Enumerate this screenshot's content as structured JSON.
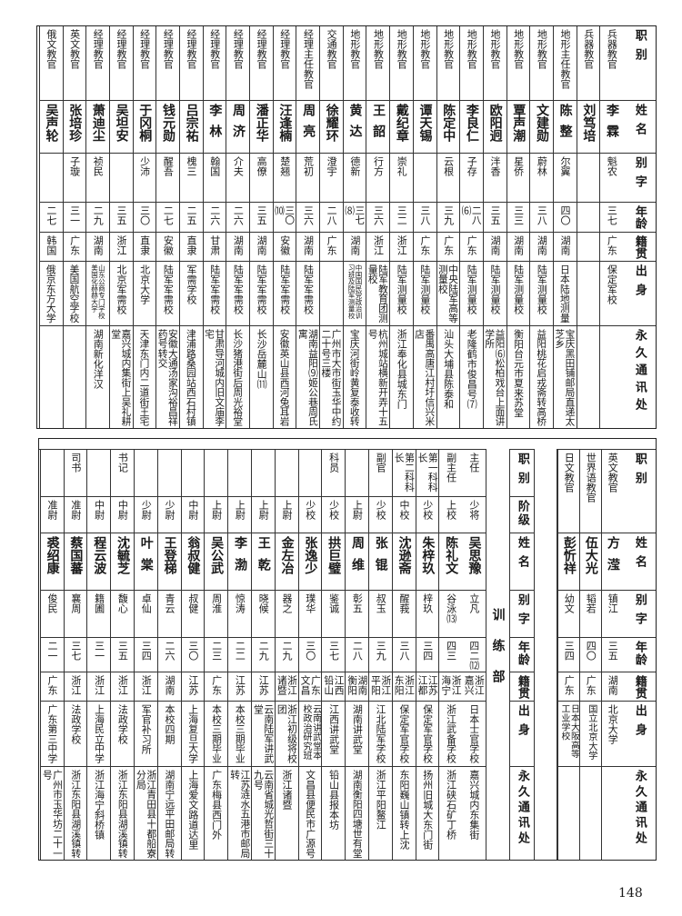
{
  "upper": {
    "headers": [
      "职别",
      "姓名",
      "别字",
      "年龄",
      "籍贯",
      "出身",
      "永久通讯处"
    ],
    "columns": [
      {
        "role": "兵器教官",
        "name": "李霖",
        "alias": "魁农",
        "age": "三七",
        "native": "广东",
        "education": "保定军校",
        "address": ""
      },
      {
        "role": "兵器教官",
        "name": "刘笃培",
        "alias": "",
        "age": "",
        "native": "",
        "education": "",
        "address": ""
      },
      {
        "role": "地形主任教官",
        "name": "陈整",
        "alias": "尔翼",
        "age": "四〇",
        "native": "湖南",
        "education": "日本陆地测量",
        "address": "宝庆黑田铺邮局直递太芝乡"
      },
      {
        "role": "地形教官",
        "name": "文建勋",
        "alias": "蔚林",
        "age": "三八",
        "native": "湖南",
        "education": "陆军测量校",
        "address": "益阳桃花启戎斋转高桥"
      },
      {
        "role": "地形教官",
        "name": "覃声潮",
        "alias": "星侨",
        "age": "三三",
        "native": "湖南",
        "education": "陆军测量校",
        "address": "衡阳台元市夏来苏堂"
      },
      {
        "role": "地形教官",
        "name": "欧阳迥",
        "alias": "泮香",
        "age": "三五",
        "native": "湖南",
        "education": "陆军测量校",
        "address": "益阳⑹松柏戏台上面讲学所"
      },
      {
        "role": "地形教官",
        "name": "李良仁",
        "alias": "子存",
        "age": "二八⑹",
        "native": "广东",
        "education": "陆军测量校",
        "address": "老隆鹤市俊昌号⑺"
      },
      {
        "role": "地形教官",
        "name": "陈定中",
        "alias": "云根",
        "age": "三九",
        "native": "广东",
        "education": "中央陆军高等测量校",
        "address": "汕头大埔县陈泰和"
      },
      {
        "role": "地形教官",
        "name": "谭天锡",
        "alias": "",
        "age": "三八",
        "native": "广东",
        "education": "陆军测量校",
        "address": "番禺高唐江村圩信兴米店"
      },
      {
        "role": "地形教官",
        "name": "戴纪章",
        "alias": "崇礼",
        "age": "三二",
        "native": "浙江",
        "education": "陆军测量校",
        "address": "浙江奉化县城东门"
      },
      {
        "role": "地形教官",
        "name": "王韶",
        "alias": "行方",
        "age": "三六",
        "native": "浙江",
        "education": "陆军教育团测量校",
        "address": "杭州城站横新开弄十五号"
      },
      {
        "role": "地形教官",
        "name": "黄达",
        "alias": "德新",
        "age": "三七⑻",
        "native": "湖南",
        "education": "中国国民党政治训习班及陆军测量校",
        "address": "宝庆河街岭黄复泰收转"
      },
      {
        "role": "交通教官",
        "name": "徐耀环",
        "alias": "澄宇",
        "age": "二八",
        "native": "广东",
        "education": "",
        "address": "广州市大市街玉华中约二十号三楼"
      },
      {
        "role": "经理主任教官",
        "name": "周亮",
        "alias": "荒初",
        "age": "三六",
        "native": "湖南",
        "education": "陆军军需校",
        "address": "湖南益阳⑼姬公巷周氏寓"
      },
      {
        "role": "经理教官",
        "name": "汪逢楠",
        "alias": "楚翘",
        "age": "三〇⑽",
        "native": "安徽",
        "education": "陆军军需校",
        "address": "安徽英山县西河兔耳岩"
      },
      {
        "role": "经理教官",
        "name": "潘正华",
        "alias": "高僚",
        "age": "三五",
        "native": "湖南",
        "education": "陆军军需校",
        "address": "长沙岳麓山⑾"
      },
      {
        "role": "经理教官",
        "name": "周济",
        "alias": "介夫",
        "age": "二六",
        "native": "湖南",
        "education": "陆军军需校",
        "address": "长沙猪港街后周光裕堂"
      },
      {
        "role": "经理教官",
        "name": "李林",
        "alias": "翰国",
        "age": "二六",
        "native": "甘肃",
        "education": "陆军军需校",
        "address": "甘肃导河城内旧文庙李宅"
      },
      {
        "role": "经理教官",
        "name": "吕宗祐",
        "alias": "槐三",
        "age": "二五",
        "native": "直隶",
        "education": "军需学校",
        "address": "津浦路桑园站西石村镇"
      },
      {
        "role": "经理教官",
        "name": "钱元勋",
        "alias": "醒吾",
        "age": "二七",
        "native": "安徽",
        "education": "陆军军需校",
        "address": "安徽大通汤家沟裕昌祥药号转交"
      },
      {
        "role": "经理教官",
        "name": "于冈桐",
        "alias": "少沛",
        "age": "三〇",
        "native": "直隶",
        "education": "北京大学",
        "address": "天津东门内二道街王宅"
      },
      {
        "role": "经理教官",
        "name": "吴坦安",
        "alias": "",
        "age": "三五",
        "native": "浙江",
        "education": "北京军需校",
        "address": "嘉兴城内集街上吴礼耕堂"
      },
      {
        "role": "经理教官",
        "name": "萧迪尘",
        "alias": "祯民",
        "age": "二九",
        "native": "湖南",
        "education": "山东公商专门学校美国化赫赫大学",
        "address": "湖南新化洋汉"
      },
      {
        "role": "英文教官",
        "name": "张培珍",
        "alias": "子璇",
        "age": "三一",
        "native": "广东",
        "education": "美国航空学校",
        "address": ""
      },
      {
        "role": "俄文教官",
        "name": "吴声轮",
        "alias": "",
        "age": "二七",
        "native": "韩国",
        "education": "俄京东方大学",
        "address": ""
      }
    ]
  },
  "lower_right": {
    "headers": [
      "职别",
      "姓名",
      "别字",
      "年龄",
      "籍贯",
      "出身",
      "永久通讯处"
    ],
    "columns": [
      {
        "role": "英文教官",
        "name": "方滢",
        "alias": "镇江",
        "age": "三五",
        "native": "湖南",
        "education": "北京大学",
        "address": ""
      },
      {
        "role": "世界语教官",
        "name": "伍大光",
        "alias": "韬若",
        "age": "四〇",
        "native": "广东",
        "education": "国立北京大学",
        "address": ""
      },
      {
        "role": "日文教官",
        "name": "彭忻祥",
        "alias": "幼文",
        "age": "三四",
        "native": "广东",
        "education": "日本大阪高等工业学校",
        "address": ""
      }
    ]
  },
  "department": "训练部",
  "lower_left": {
    "headers": [
      "职别",
      "阶级",
      "姓名",
      "别字",
      "年龄",
      "籍贯",
      "出身",
      "永久通讯处"
    ],
    "columns": [
      {
        "role": "主任",
        "rank": "少将",
        "name": "吴思豫",
        "alias": "立凡",
        "age": "四二⑿",
        "native": "浙江嘉兴",
        "education": "日本士官学校",
        "address": "嘉兴城内东集街"
      },
      {
        "role": "副主任",
        "rank": "上校",
        "name": "陈礼文",
        "alias": "谷泳⒀",
        "age": "四三",
        "native": "浙江海宁",
        "education": "浙江武备学校",
        "address": "浙江硖石矿丁桥"
      },
      {
        "role": "第一科科长",
        "rank": "少校",
        "name": "朱梓玖",
        "alias": "梓玖",
        "age": "三四",
        "native": "江苏江都",
        "education": "保定军官学校",
        "address": "扬州旧城大东门街"
      },
      {
        "role": "第二科科长",
        "rank": "中校",
        "name": "沈逊斋",
        "alias": "醒莪",
        "age": "三八",
        "native": "浙江东阳",
        "education": "保定军官学校",
        "address": "东阳巍山镇转上沈"
      },
      {
        "role": "副官",
        "rank": "少校",
        "name": "张锟",
        "alias": "叔玉",
        "age": "三九",
        "native": "浙江平阳",
        "education": "江北陆军学校",
        "address": "浙江平阳鳌江"
      },
      {
        "role": "",
        "rank": "上尉",
        "name": "周维",
        "alias": "彰五",
        "age": "二八",
        "native": "湖南衡阳",
        "education": "湖南讲武堂",
        "address": "湖南衡阳四塘世有堂"
      },
      {
        "role": "科员",
        "rank": "少校",
        "name": "拱巨璧",
        "alias": "鉴诚",
        "age": "三七",
        "native": "江西铅山",
        "education": "江西讲武堂",
        "address": "铅山县报本坊"
      },
      {
        "role": "",
        "rank": "少校",
        "name": "张逸少",
        "alias": "璞华",
        "age": "三〇",
        "native": "广东文昌",
        "education": "云南讲武堂本校政治研究班",
        "address": "文昌县便民市广源号"
      },
      {
        "role": "",
        "rank": "上尉",
        "name": "金左冶",
        "alias": "器之",
        "age": "二九",
        "native": "浙江诸暨",
        "education": "浙江初级将校团",
        "address": "浙江诸暨"
      },
      {
        "role": "",
        "rank": "上尉",
        "name": "王乾",
        "alias": "晓候",
        "age": "二九",
        "native": "江苏",
        "education": "云南陆军讲武堂",
        "address": "云南省城光哲街三十九号"
      },
      {
        "role": "",
        "rank": "上尉",
        "name": "李渤",
        "alias": "惊涛",
        "age": "二二",
        "native": "江苏",
        "education": "本校三期毕业",
        "address": "江苏涟水五港市邮局转"
      },
      {
        "role": "",
        "rank": "上尉",
        "name": "吴公武",
        "alias": "周淮",
        "age": "二三",
        "native": "广东",
        "education": "本校三期毕业",
        "address": "广东梅县西门外"
      },
      {
        "role": "",
        "rank": "中尉",
        "name": "翁叔健",
        "alias": "叔健",
        "age": "三〇",
        "native": "江苏",
        "education": "上海复旦大学",
        "address": "上海爱文路道达里"
      },
      {
        "role": "",
        "rank": "少尉",
        "name": "王登梯",
        "alias": "青云",
        "age": "二六",
        "native": "湖南",
        "education": "本校四期",
        "address": "湖南宁远平田邮局转"
      },
      {
        "role": "",
        "rank": "少尉",
        "name": "叶棠",
        "alias": "卓仙",
        "age": "三四",
        "native": "浙江",
        "education": "军官补习所",
        "address": "浙江青田县十都船寮分局"
      },
      {
        "role": "书记",
        "rank": "中尉",
        "name": "沈毓芝",
        "alias": "馥心",
        "age": "三五",
        "native": "浙江",
        "education": "法政学校",
        "address": "浙江东阳县湖溪镇转"
      },
      {
        "role": "",
        "rank": "中尉",
        "name": "程云波",
        "alias": "籍圃",
        "age": "三一",
        "native": "浙江",
        "education": "上海民立中学",
        "address": "浙江海宁斜桥镇"
      },
      {
        "role": "司书",
        "rank": "准尉",
        "name": "蔡国蕃",
        "alias": "襄周",
        "age": "三七",
        "native": "浙江",
        "education": "法政学校",
        "address": "浙江东阳县湖溪镇转"
      },
      {
        "role": "",
        "rank": "准尉",
        "name": "裘绍康",
        "alias": "俊民",
        "age": "二一",
        "native": "广东",
        "education": "广东第三中学",
        "address": "广州市玉华坊二十一号"
      }
    ]
  },
  "page_number": "148"
}
